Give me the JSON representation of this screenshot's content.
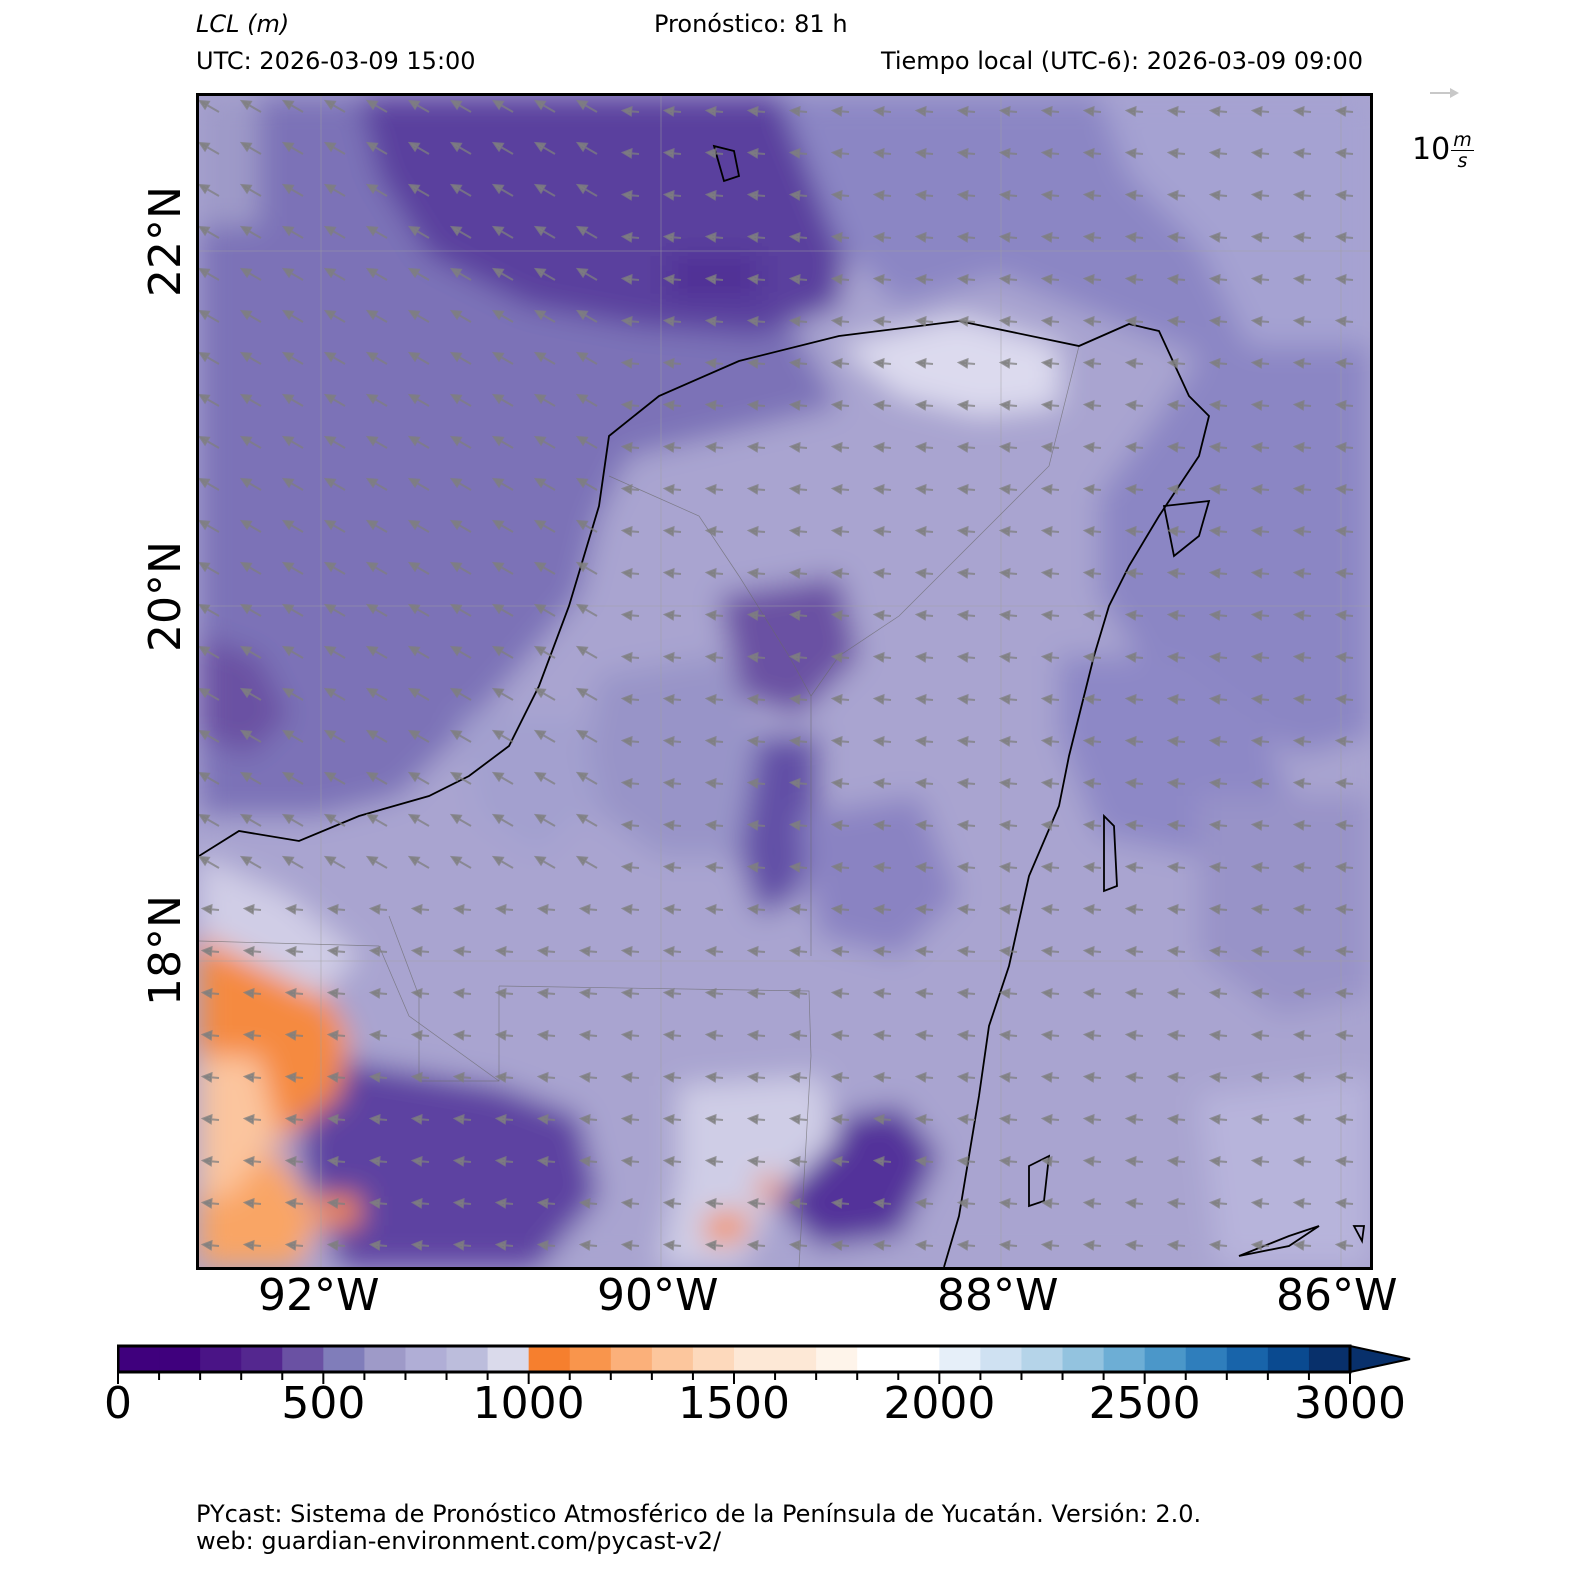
{
  "header": {
    "variable_name": "LCL",
    "variable_unit": "m",
    "forecast": "Pronóstico: 81 h",
    "utc": "UTC:  2026-03-09 15:00",
    "local_time": "Tiempo local (UTC-6): 2026-03-09 09:00"
  },
  "map": {
    "region": "Península de Yucatán",
    "lat_labels": [
      "22°N",
      "20°N",
      "18°N"
    ],
    "lon_labels": [
      "92°W",
      "90°W",
      "88°W",
      "86°W"
    ],
    "wind_reference": {
      "value": "10",
      "unit_num": "m",
      "unit_den": "s"
    },
    "wind_direction": "from east / southeast",
    "colors": {
      "ocean_dark": "#5a3f9e",
      "mid_purple": "#8782c0",
      "light_purple": "#b3b0d8",
      "orange": "#f67f2e",
      "light_orange": "#fbb07a",
      "coast": "#000000",
      "arrows": "#808080"
    }
  },
  "colorbar": {
    "label": "LCL (m)",
    "ticks": [
      "0",
      "500",
      "1000",
      "1500",
      "2000",
      "2500",
      "3000"
    ],
    "min": 0,
    "max": 3000,
    "step": 100,
    "extend": "max",
    "colors": [
      "#3f007d",
      "#4a1486",
      "#54278f",
      "#6a51a3",
      "#807dba",
      "#9e9ac8",
      "#b0aed6",
      "#bcbddc",
      "#dadaeb",
      "#f67f2e",
      "#f9954c",
      "#fbb07a",
      "#fcc69d",
      "#fdd9bc",
      "#fde8d6",
      "#fef4ea",
      "#ffffff",
      "#ffffff",
      "#e6eff9",
      "#cfe1f2",
      "#b5d4e9",
      "#93c3df",
      "#6daed5",
      "#4b97c9",
      "#2f7ebc",
      "#1864aa",
      "#0a4a90",
      "#08306b"
    ]
  },
  "footer": {
    "line1": "PYcast: Sistema de Pronóstico Atmosférico de la Península de Yucatán. Versión: 2.0.",
    "line2": "web: guardian-environment.com/pycast-v2/"
  }
}
